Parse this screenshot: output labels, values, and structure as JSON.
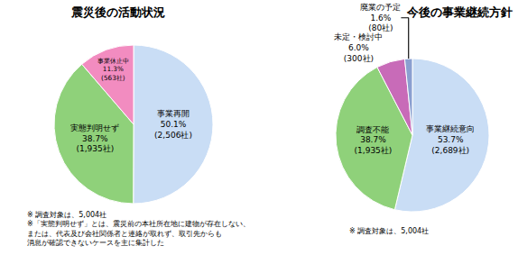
{
  "chart_data": [
    {
      "type": "pie",
      "title": "震災後の活動状況",
      "categories": [
        "事業再開",
        "実態判明せず",
        "事業休止中"
      ],
      "values": [
        50.1,
        38.7,
        11.3
      ],
      "value_labels": [
        "50.1%",
        "38.7%",
        "11.3%"
      ],
      "count_labels": [
        "(2,506社)",
        "(1,935社)",
        "(563社)"
      ],
      "colors": [
        "#c9ddf5",
        "#8fd17a",
        "#f28cc0"
      ],
      "data_labels": true,
      "notes": [
        [
          "※ 調査対象は、5,004社"
        ],
        [
          "※「実態判明せず」とは、震災前の本社所在地に建物が存在しない、",
          "または、代表及び会社関係者と連絡が取れず、取引先からも",
          "消息が確認できないケースを主に集計した"
        ]
      ]
    },
    {
      "type": "pie",
      "title": "今後の事業継続方針",
      "categories": [
        "事業継続意向",
        "調査不能",
        "未定・検討中",
        "廃業の予定"
      ],
      "values": [
        53.7,
        38.7,
        6.0,
        1.6
      ],
      "value_labels": [
        "53.7%",
        "38.7%",
        "6.0%",
        "1.6%"
      ],
      "count_labels": [
        "(2,689社)",
        "(1,935社)",
        "(300社)",
        "(80社)"
      ],
      "colors": [
        "#c9ddf5",
        "#8fd17a",
        "#c86bb8",
        "#8a9fd0"
      ],
      "data_labels": true,
      "notes": [
        [
          "※ 調査対象は、5,004社"
        ]
      ]
    }
  ]
}
